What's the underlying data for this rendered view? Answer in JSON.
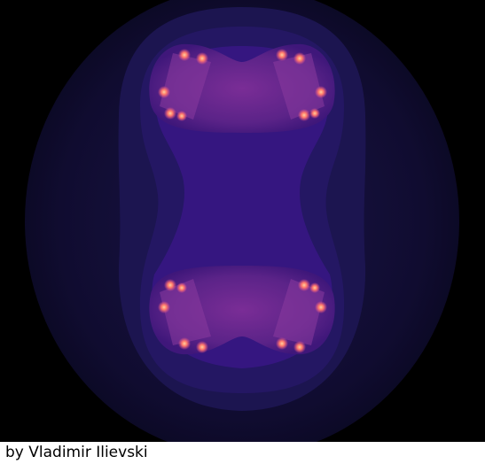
{
  "image": {
    "subject": "fractal-render",
    "colors": {
      "background": "#000000",
      "outer_glow": "#0d0a26",
      "mid_band": "#17123f",
      "inner_band": "#2b155f",
      "core_purple": "#3a157a",
      "lobe_magenta": "#6a2a8e",
      "hotspot": "#ff9a6a"
    }
  },
  "credit": {
    "text": "by Vladimir Ilievski"
  }
}
